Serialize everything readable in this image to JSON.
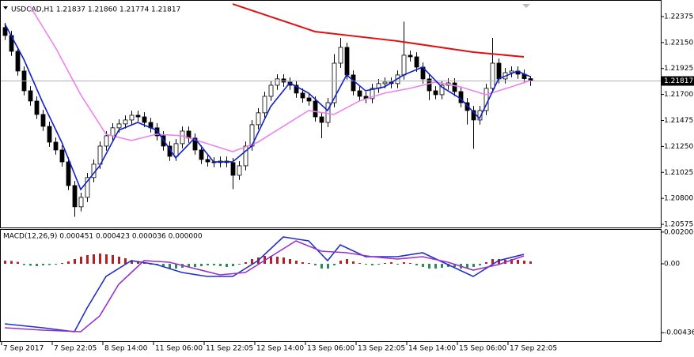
{
  "chart_data": [
    {
      "type": "candlestick",
      "title": "USDCAD,H1  1.21837 1.21860 1.21774 1.21817",
      "open": [
        1.2228,
        1.22211,
        1.22074,
        1.21903,
        1.21732,
        1.21643,
        1.21527,
        1.21424,
        1.21287,
        1.21219,
        1.21116,
        1.20911,
        1.20727,
        1.20809,
        1.2098,
        1.21096,
        1.21253,
        1.21342,
        1.21411,
        1.21445,
        1.21479,
        1.2152,
        1.21506,
        1.21458,
        1.21411,
        1.21342,
        1.21253,
        1.21164,
        1.21274,
        1.21383,
        1.21322,
        1.21219,
        1.21137,
        1.21116,
        1.2111,
        1.21123,
        1.2111,
        1.21,
        1.21082,
        1.21253,
        1.21438,
        1.21541,
        1.21684,
        1.2178,
        1.21835,
        1.21807,
        1.2178,
        1.21712,
        1.2167,
        1.21643,
        1.21506,
        1.21458,
        1.21629,
        1.21971,
        1.22108,
        1.21869,
        1.21732,
        1.21684,
        1.21664,
        1.21753,
        1.21794,
        1.21807,
        1.21794,
        1.21869,
        1.2204,
        1.22026,
        1.21937,
        1.21835,
        1.21732,
        1.21698,
        1.2178,
        1.218,
        1.21725,
        1.21629,
        1.21561,
        1.21479,
        1.21561,
        1.21753,
        1.21971,
        1.21835,
        1.21889,
        1.21903,
        1.21876,
        1.21837
      ],
      "high": [
        1.2232,
        1.22251,
        1.22114,
        1.21943,
        1.21772,
        1.21683,
        1.21567,
        1.21464,
        1.21327,
        1.21259,
        1.21156,
        1.20951,
        1.20849,
        1.2102,
        1.21136,
        1.21293,
        1.21382,
        1.21451,
        1.21485,
        1.21519,
        1.2156,
        1.2156,
        1.21546,
        1.21498,
        1.21451,
        1.21382,
        1.21293,
        1.21314,
        1.21423,
        1.21423,
        1.21362,
        1.21259,
        1.21177,
        1.21156,
        1.21163,
        1.21163,
        1.2115,
        1.21122,
        1.21293,
        1.21478,
        1.21581,
        1.21724,
        1.2182,
        1.21875,
        1.21875,
        1.21847,
        1.2182,
        1.21752,
        1.2171,
        1.21683,
        1.21546,
        1.21669,
        1.2205,
        1.2219,
        1.22148,
        1.21909,
        1.21772,
        1.21724,
        1.21793,
        1.21834,
        1.21847,
        1.21847,
        1.21909,
        1.2233,
        1.2208,
        1.22066,
        1.21977,
        1.21875,
        1.21772,
        1.2182,
        1.2184,
        1.2184,
        1.21765,
        1.21669,
        1.21601,
        1.21601,
        1.21793,
        1.2219,
        1.22011,
        1.21929,
        1.21943,
        1.21943,
        1.21916,
        1.2186
      ],
      "low": [
        1.22171,
        1.22034,
        1.21863,
        1.21692,
        1.21603,
        1.21487,
        1.21384,
        1.21247,
        1.21179,
        1.21076,
        1.20871,
        1.2064,
        1.20687,
        1.20769,
        1.2094,
        1.21056,
        1.21213,
        1.21302,
        1.21371,
        1.21405,
        1.21439,
        1.21466,
        1.21418,
        1.21371,
        1.21302,
        1.21213,
        1.21124,
        1.21124,
        1.21234,
        1.21282,
        1.21179,
        1.21097,
        1.21076,
        1.2107,
        1.2107,
        1.2107,
        1.2088,
        1.2096,
        1.21042,
        1.21213,
        1.21398,
        1.21501,
        1.21644,
        1.2174,
        1.21767,
        1.2174,
        1.21672,
        1.2163,
        1.21603,
        1.21466,
        1.2132,
        1.21418,
        1.21589,
        1.21931,
        1.21829,
        1.21692,
        1.21644,
        1.21624,
        1.21624,
        1.21713,
        1.21754,
        1.21754,
        1.21754,
        1.21829,
        1.21986,
        1.21897,
        1.21795,
        1.2165,
        1.21658,
        1.21658,
        1.2174,
        1.21685,
        1.21589,
        1.2144,
        1.2123,
        1.21439,
        1.21521,
        1.21713,
        1.21795,
        1.21795,
        1.21849,
        1.21836,
        1.21797,
        1.21774
      ],
      "close": [
        1.22211,
        1.22074,
        1.21903,
        1.21732,
        1.21643,
        1.21527,
        1.21424,
        1.21287,
        1.21219,
        1.21116,
        1.20911,
        1.20727,
        1.20809,
        1.2098,
        1.21096,
        1.21253,
        1.21342,
        1.21411,
        1.21445,
        1.21479,
        1.2152,
        1.21506,
        1.21458,
        1.21411,
        1.21342,
        1.21253,
        1.21164,
        1.21274,
        1.21383,
        1.21322,
        1.21219,
        1.21137,
        1.21116,
        1.2111,
        1.21123,
        1.2111,
        1.21,
        1.21082,
        1.21253,
        1.21438,
        1.21541,
        1.21684,
        1.2178,
        1.21835,
        1.21807,
        1.2178,
        1.21712,
        1.2167,
        1.21643,
        1.21506,
        1.21458,
        1.21629,
        1.21971,
        1.22108,
        1.21869,
        1.21732,
        1.21684,
        1.21664,
        1.21753,
        1.21794,
        1.21807,
        1.21794,
        1.21869,
        1.2204,
        1.22026,
        1.21937,
        1.21835,
        1.21732,
        1.21698,
        1.2178,
        1.218,
        1.21725,
        1.21629,
        1.21561,
        1.21479,
        1.21561,
        1.21753,
        1.21971,
        1.21835,
        1.21889,
        1.21903,
        1.21876,
        1.21837,
        1.21817
      ],
      "up_color": "#ffffff",
      "down_color": "#000000",
      "lines": [
        {
          "color": "#ee82ee",
          "x": [
            4,
            8,
            12,
            16,
            20,
            24,
            28,
            32,
            36,
            40,
            44,
            48,
            52,
            56,
            60,
            64,
            68,
            72,
            76,
            80,
            83
          ],
          "values": [
            1.22464,
            1.22108,
            1.21698,
            1.21356,
            1.21301,
            1.21356,
            1.21342,
            1.21274,
            1.21205,
            1.21287,
            1.21424,
            1.21561,
            1.21527,
            1.21643,
            1.21712,
            1.21753,
            1.21807,
            1.21766,
            1.21698,
            1.21766,
            1.21821
          ]
        },
        {
          "color": "#e01010",
          "x": [
            36,
            49,
            62,
            74,
            82
          ],
          "values": [
            1.22484,
            1.22245,
            1.22163,
            1.22067,
            1.22026
          ]
        },
        {
          "color": "#1020c8",
          "x": [
            0,
            3,
            6,
            9,
            12,
            15,
            18,
            21,
            24,
            27,
            30,
            33,
            36,
            39,
            42,
            45,
            48,
            51,
            54,
            57,
            60,
            63,
            66,
            69,
            72,
            75,
            78,
            81,
            83
          ],
          "values": [
            1.22313,
            1.22006,
            1.21629,
            1.21287,
            1.20877,
            1.21082,
            1.2139,
            1.21458,
            1.2139,
            1.21151,
            1.21322,
            1.21116,
            1.21116,
            1.21253,
            1.21595,
            1.218,
            1.21712,
            1.21561,
            1.21869,
            1.21732,
            1.21766,
            1.21869,
            1.21937,
            1.21766,
            1.21664,
            1.21492,
            1.21835,
            1.21903,
            1.21855
          ]
        }
      ],
      "ylim": [
        1.20548,
        1.22491
      ],
      "yticks": [
        1.22375,
        {
          "value": 1.2215,
          "label": "1.22150"
        },
        1.21925,
        {
          "value": 1.217,
          "label": "1.21700"
        },
        1.21475,
        {
          "value": 1.2125,
          "label": "1.21250"
        },
        1.21025,
        {
          "value": 1.208,
          "label": "1.20800"
        },
        1.20575
      ],
      "xticks": [
        {
          "value": 0,
          "label": "7 Sep 2017"
        },
        {
          "value": 8,
          "label": "7 Sep 22:05"
        },
        {
          "value": 16,
          "label": "8 Sep 14:00"
        },
        {
          "value": 24,
          "label": "11 Sep 06:00"
        },
        {
          "value": 32,
          "label": "11 Sep 22:05"
        },
        {
          "value": 40,
          "label": "12 Sep 14:00"
        },
        {
          "value": 48,
          "label": "13 Sep 06:00"
        },
        {
          "value": 56,
          "label": "13 Sep 22:05"
        },
        {
          "value": 64,
          "label": "14 Sep 14:00"
        },
        {
          "value": 72,
          "label": "15 Sep 06:00"
        },
        {
          "value": 80,
          "label": "17 Sep 22:05"
        }
      ],
      "grid": false
    },
    {
      "type": "bar",
      "title": "MACD(12,26,9) 0.000451 0.000423 0.000036 0.000000",
      "values": [
        0.0002,
        0.00018,
        0.00012,
        -8e-05,
        -0.00012,
        -0.00015,
        -0.0001,
        -8e-05,
        -5e-05,
        5e-05,
        0.00015,
        0.0003,
        0.00045,
        0.00055,
        0.0006,
        0.00065,
        0.0006,
        0.00055,
        0.00045,
        0.00035,
        0.0002,
        0.0001,
        5e-05,
        -5e-05,
        -0.0001,
        -0.0002,
        -0.0003,
        -0.0003,
        -0.00025,
        -0.0002,
        -0.0002,
        -0.00015,
        -0.0001,
        -0.0001,
        -0.00015,
        -0.0002,
        -0.00015,
        -5e-05,
        0.0001,
        0.0003,
        0.0004,
        0.0005,
        0.0005,
        0.00045,
        0.0004,
        0.0003,
        0.0002,
        0.0001,
        5e-05,
        -0.0001,
        -0.0003,
        -0.0003,
        -0.0001,
        0.0002,
        0.0003,
        0.00015,
        5e-05,
        -5e-05,
        -0.0001,
        -5e-05,
        5e-05,
        0.0001,
        -5e-05,
        0.0001,
        5e-05,
        -0.0001,
        -0.0002,
        -0.0003,
        -0.0003,
        -0.00025,
        -0.0002,
        -0.0002,
        -0.0003,
        -0.0003,
        -0.0002,
        -0.0001,
        0.0001,
        0.0003,
        0.0003,
        0.00025,
        0.0003,
        0.00025,
        0.0002,
        0.00015
      ],
      "up_color": "#b22222",
      "down_color": "#2e8b57",
      "lines": [
        {
          "color": "#2030c8",
          "x": [
            0,
            6,
            11,
            13,
            16,
            20,
            24,
            28,
            32,
            36,
            40,
            44,
            48,
            51,
            53,
            57,
            62,
            66,
            70,
            74,
            78,
            82
          ],
          "values": [
            -0.0038,
            -0.00405,
            -0.0043,
            -0.0028,
            -0.0008,
            0.0002,
            -5e-05,
            -0.00055,
            -0.0008,
            -0.0008,
            0.0002,
            0.0017,
            0.00145,
            0.0002,
            0.0012,
            0.00045,
            0.00045,
            0.0007,
            -5e-05,
            -0.0008,
            0.0002,
            0.0006
          ]
        },
        {
          "color": "#9932cc",
          "x": [
            0,
            6,
            12,
            15,
            18,
            22,
            26,
            30,
            34,
            38,
            42,
            46,
            50,
            54,
            58,
            62,
            66,
            70,
            74,
            78,
            82
          ],
          "values": [
            -0.00405,
            -0.0042,
            -0.0043,
            -0.0033,
            -0.0013,
            0.0002,
            0.0001,
            -0.0003,
            -0.0007,
            -0.00055,
            0.00045,
            0.00145,
            0.0008,
            0.0007,
            0.00045,
            0.0003,
            0.00045,
            0.0001,
            -0.0004,
            -5e-05,
            0.0005
          ]
        }
      ],
      "ylim": [
        -0.0049,
        0.00215
      ],
      "yticks": [
        0.002006,
        {
          "value": 0,
          "label": "0.00"
        },
        -0.004362
      ],
      "grid": false
    }
  ]
}
